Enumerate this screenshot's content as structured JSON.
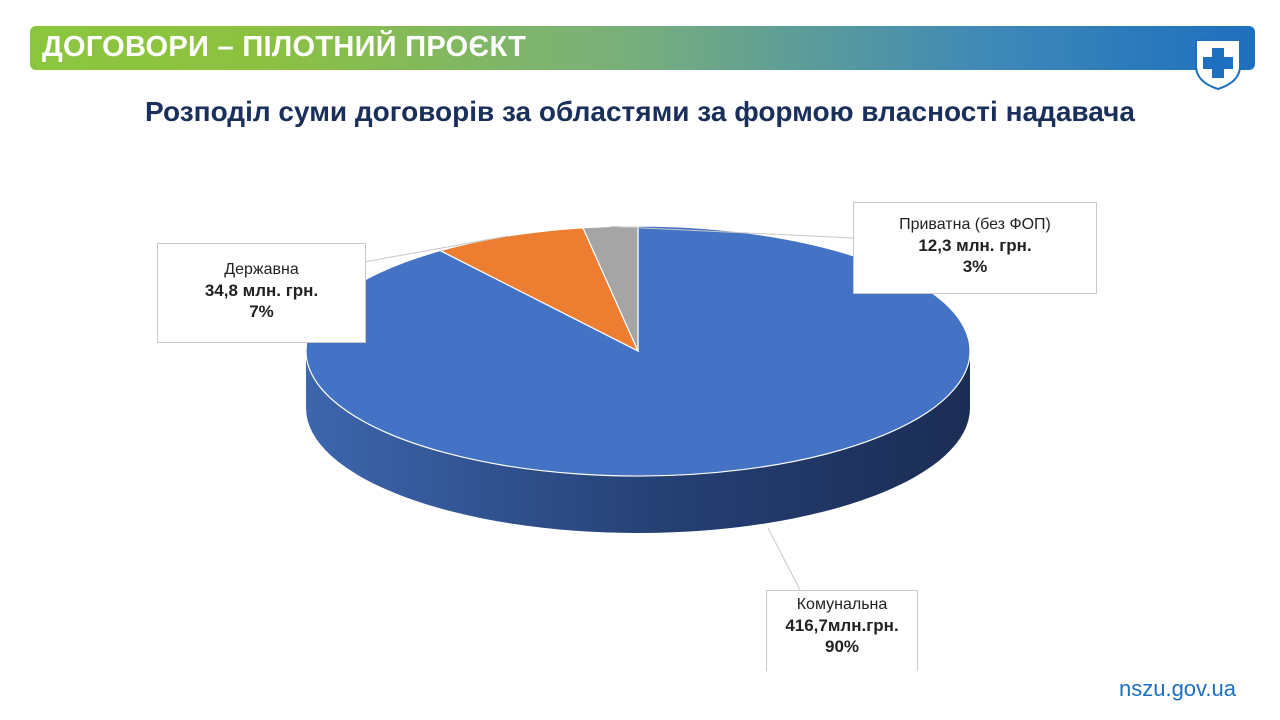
{
  "header": {
    "title": "ДОГОВОРИ – ПІЛОТНИЙ ПРОЄКТ"
  },
  "colors": {
    "accent_green": "#8cc63f",
    "accent_blue": "#1e6fbf",
    "title_navy": "#1a2f5a"
  },
  "logo": {
    "icon": "medical-cross-shield-icon"
  },
  "footer": {
    "site": "nszu.gov.ua"
  },
  "chart_data": {
    "type": "pie",
    "title": "Розподіл суми договорів за областями за формою власності надавача",
    "style": "3d",
    "slices": [
      {
        "label": "Комунальна",
        "value_text": "416,7млн.грн.",
        "value": 416.7,
        "percent": 90,
        "percent_text": "90%",
        "color": "#4472c4"
      },
      {
        "label": "Державна",
        "value_text": "34,8 млн.  грн.",
        "value": 34.8,
        "percent": 7,
        "percent_text": "7%",
        "color": "#ed7d31"
      },
      {
        "label": "Приватна (без ФОП)",
        "value_text": "12,3  млн.  грн.",
        "value": 12.3,
        "percent": 3,
        "percent_text": "3%",
        "color": "#a5a5a5"
      }
    ]
  }
}
